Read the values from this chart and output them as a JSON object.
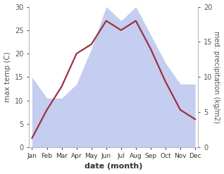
{
  "months": [
    "Jan",
    "Feb",
    "Mar",
    "Apr",
    "May",
    "Jun",
    "Jul",
    "Aug",
    "Sep",
    "Oct",
    "Nov",
    "Dec"
  ],
  "x": [
    0,
    1,
    2,
    3,
    4,
    5,
    6,
    7,
    8,
    9,
    10,
    11
  ],
  "temperature": [
    2,
    8,
    13,
    20,
    22,
    27,
    25,
    27,
    21,
    14,
    8,
    6
  ],
  "precipitation": [
    10,
    7,
    7,
    9,
    14,
    20,
    18,
    20,
    16,
    12,
    9,
    9
  ],
  "temp_color": "#993344",
  "precip_color": "#c5cdf0",
  "ylim_left": [
    0,
    30
  ],
  "ylim_right": [
    0,
    20
  ],
  "yticks_left": [
    0,
    5,
    10,
    15,
    20,
    25,
    30
  ],
  "yticks_right": [
    0,
    5,
    10,
    15,
    20
  ],
  "ylabel_left": "max temp (C)",
  "ylabel_right": "med. precipitation (kg/m2)",
  "xlabel": "date (month)",
  "bg_color": "#ffffff",
  "left_axis_color": "#555555",
  "right_axis_color": "#555555"
}
